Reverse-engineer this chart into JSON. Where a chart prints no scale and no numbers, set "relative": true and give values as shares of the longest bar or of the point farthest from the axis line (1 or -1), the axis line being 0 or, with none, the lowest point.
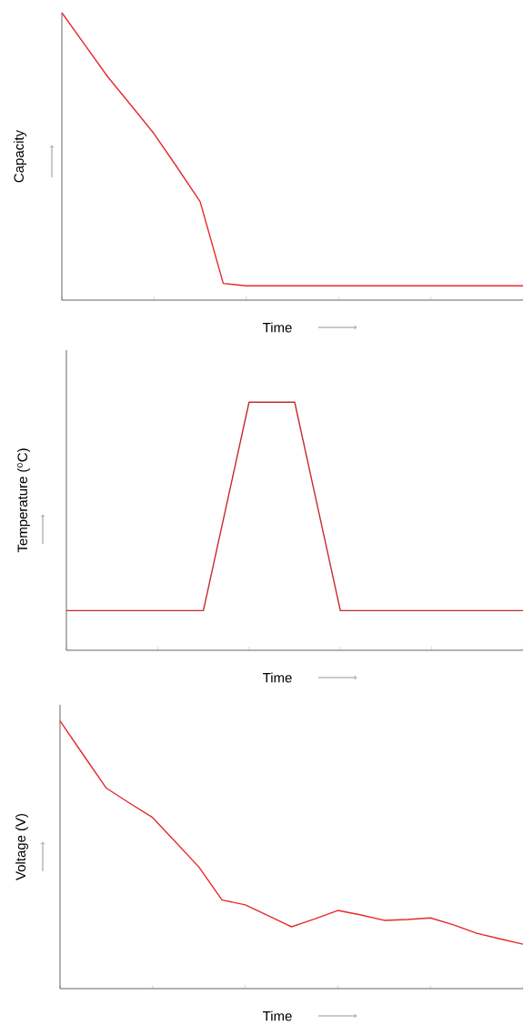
{
  "chart_data": [
    {
      "type": "line",
      "relative": true,
      "xlabel": "Time",
      "ylabel": "Capacity",
      "categories": [
        null,
        null,
        null,
        null,
        null,
        null,
        null,
        null,
        null,
        null,
        null,
        null,
        null,
        null,
        null,
        null,
        null,
        null,
        null,
        null,
        null
      ],
      "series": [
        {
          "color": "#e8282c",
          "values": [
            1.0,
            0.888,
            0.776,
            0.678,
            0.579,
            0.462,
            0.342,
            0.058,
            0.05,
            0.05,
            0.05,
            0.05,
            0.05,
            0.05,
            0.05,
            0.05,
            0.05,
            0.05,
            0.05,
            0.05,
            0.05
          ]
        }
      ]
    },
    {
      "type": "line",
      "relative": true,
      "xlabel": "Time",
      "ylabel": "Temperature ($^{o}$C)",
      "categories": [
        null,
        null,
        null,
        null,
        null,
        null,
        null,
        null,
        null,
        null,
        null,
        null,
        null,
        null,
        null,
        null,
        null,
        null,
        null,
        null,
        null
      ],
      "series": [
        {
          "color": "#c62a2a",
          "values": [
            0.16,
            0.16,
            0.16,
            0.16,
            0.16,
            0.16,
            0.16,
            0.58,
            1.0,
            1.0,
            1.0,
            0.58,
            0.16,
            0.16,
            0.16,
            0.16,
            0.16,
            0.16,
            0.16,
            0.16,
            0.16
          ]
        }
      ]
    },
    {
      "type": "line",
      "relative": true,
      "xlabel": "Time",
      "ylabel": "Voltage (V)",
      "categories": [
        null,
        null,
        null,
        null,
        null,
        null,
        null,
        null,
        null,
        null,
        null,
        null,
        null,
        null,
        null,
        null,
        null,
        null,
        null,
        null,
        null
      ],
      "series": [
        {
          "color": "#e8282c",
          "values": [
            1.0,
            0.874,
            0.749,
            0.693,
            0.639,
            0.547,
            0.454,
            0.331,
            0.313,
            0.272,
            0.231,
            0.26,
            0.292,
            0.275,
            0.255,
            0.258,
            0.264,
            0.238,
            0.207,
            0.186,
            0.166
          ]
        }
      ]
    }
  ]
}
